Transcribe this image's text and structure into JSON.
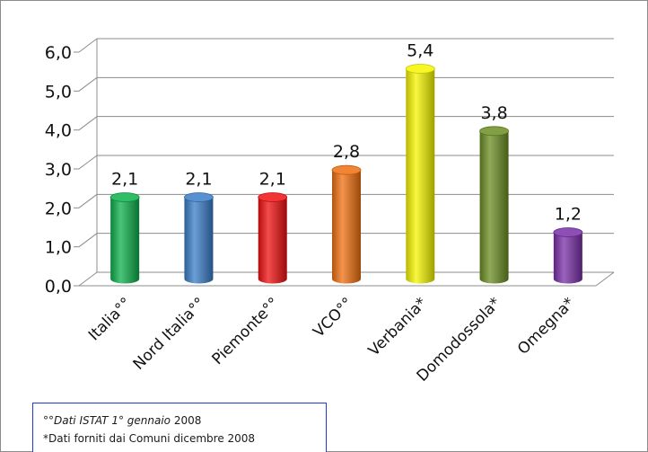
{
  "chart_data": {
    "type": "bar",
    "categories": [
      "Italia°°",
      "Nord Italia°°",
      "Piemonte°°",
      "VCO°°",
      "Verbania*",
      "Domodossola*",
      "Omegna*"
    ],
    "values": [
      2.1,
      2.1,
      2.1,
      2.8,
      5.4,
      3.8,
      1.2
    ],
    "value_labels": [
      "2,1",
      "2,1",
      "2,1",
      "2,8",
      "5,4",
      "3,8",
      "1,2"
    ],
    "colors": [
      "#0db04b",
      "#3b7dc8",
      "#f01010",
      "#f07010",
      "#f5f500",
      "#6b8e23",
      "#7a2fa8"
    ],
    "y_ticks": [
      "0,0",
      "1,0",
      "2,0",
      "3,0",
      "4,0",
      "5,0",
      "6,0"
    ],
    "ylim": [
      0,
      6
    ],
    "grid": true,
    "style": "3d-cylinder"
  },
  "footnote": {
    "line1_italic": "°°Dati ISTAT 1° gennaio",
    "line1_rest": " 2008",
    "line2": "*Dati forniti dai Comuni dicembre 2008"
  }
}
